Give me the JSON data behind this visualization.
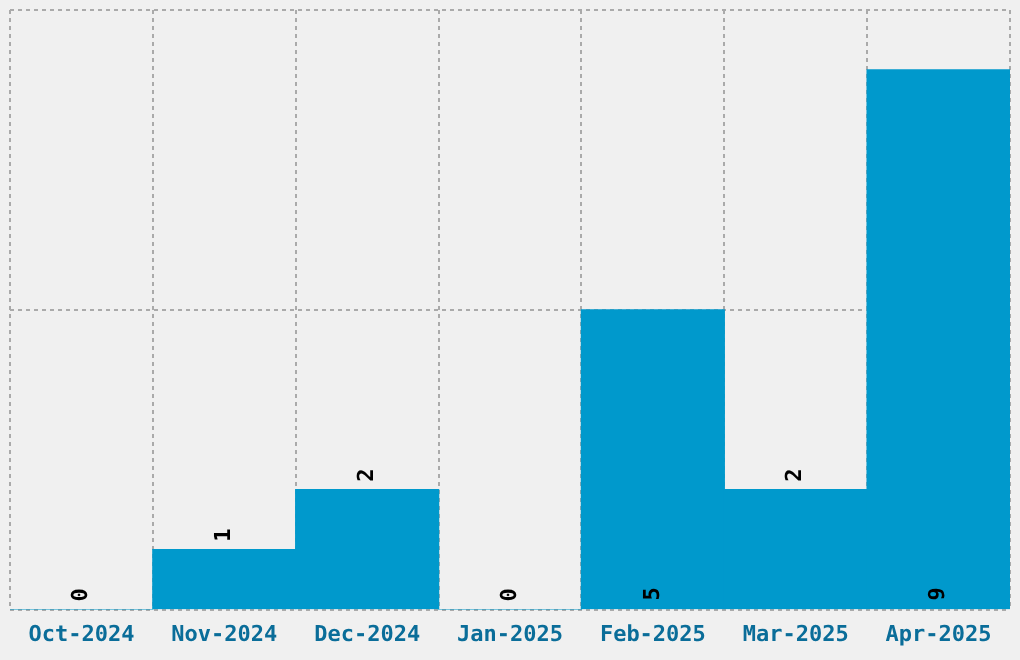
{
  "chart_data": {
    "type": "bar",
    "categories": [
      "Oct-2024",
      "Nov-2024",
      "Dec-2024",
      "Jan-2025",
      "Feb-2025",
      "Mar-2025",
      "Apr-2025"
    ],
    "values": [
      0,
      1,
      2,
      0,
      5,
      2,
      9
    ],
    "color": "#0099cc",
    "tick_labels": "x",
    "grid": true,
    "data_labels": true
  }
}
